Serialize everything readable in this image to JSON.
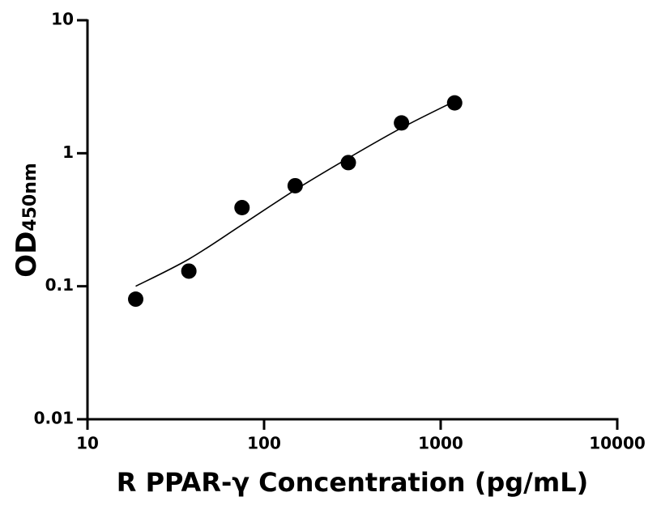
{
  "chart_data": {
    "type": "scatter",
    "x_label": "R PPAR-γ Concentration (pg/mL)",
    "y_label": "OD",
    "y_label_sub": "450nm",
    "x": [
      18.75,
      37.5,
      75,
      150,
      300,
      600,
      1200
    ],
    "values": [
      0.08,
      0.13,
      0.39,
      0.57,
      0.85,
      1.69,
      2.39
    ],
    "fit": {
      "x": [
        18.75,
        37.5,
        75,
        150,
        300,
        600,
        1200
      ],
      "values": [
        0.1,
        0.16,
        0.29,
        0.53,
        0.92,
        1.55,
        2.46
      ]
    },
    "color": "#000000",
    "x_scale": "log",
    "y_scale": "log",
    "xlim": [
      10,
      10000
    ],
    "ylim": [
      0.01,
      10
    ],
    "xticks": [
      10,
      100,
      1000,
      10000
    ],
    "yticks": [
      0.01,
      0.1,
      1,
      10
    ],
    "grid": false
  }
}
